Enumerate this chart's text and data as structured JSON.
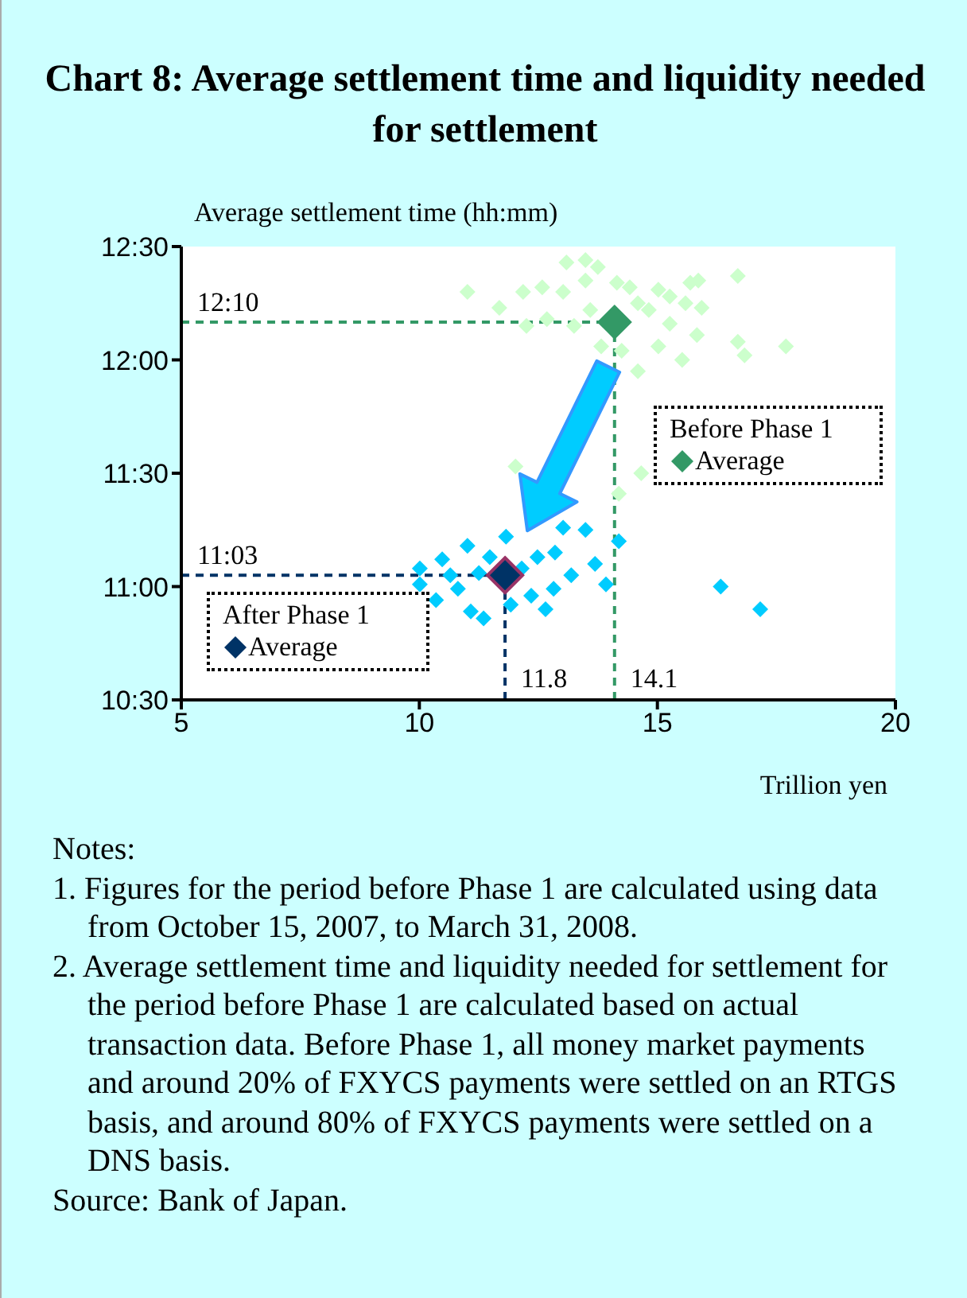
{
  "chart_data": {
    "type": "scatter",
    "title": "Chart 8: Average settlement time and liquidity needed for settlement",
    "xlabel": "Trillion yen",
    "ylabel": "Average settlement time (hh:mm)",
    "marker": "diamond",
    "legend": "right",
    "xlim": [
      5,
      20
    ],
    "xticks": [
      5,
      10,
      15,
      20
    ],
    "ylim": [
      10.5,
      12.5
    ],
    "yticks": [
      {
        "value": 10.5,
        "label": "10:30"
      },
      {
        "value": 11,
        "label": "11:00"
      },
      {
        "value": 11.5,
        "label": "11:30"
      },
      {
        "value": 12,
        "label": "12:00"
      },
      {
        "value": 12.5,
        "label": "12:30"
      }
    ],
    "series": [
      {
        "color": "#ccffcc",
        "x": [
          11.01,
          13.09,
          13.49,
          13.75,
          11.68,
          12.18,
          12.58,
          12.25,
          12.68,
          13.02,
          13.49,
          14.15,
          14.42,
          15.02,
          15.69,
          15.86,
          16.69,
          15.59,
          15.93,
          15.26,
          15.83,
          16.69,
          16.83,
          17.7,
          13.82,
          14.25,
          14.59,
          15.52,
          15.02,
          13.25,
          13.59,
          14.82,
          15.26,
          14.59,
          12.02,
          14.66,
          14.19
        ],
        "values": [
          12.3,
          12.43,
          12.44,
          12.41,
          12.23,
          12.3,
          12.32,
          12.15,
          12.18,
          12.3,
          12.35,
          12.34,
          12.32,
          12.31,
          12.34,
          12.35,
          12.37,
          12.25,
          12.23,
          12.16,
          12.11,
          12.08,
          12.02,
          12.06,
          12.06,
          12.04,
          11.95,
          12.0,
          12.06,
          12.15,
          12.22,
          12.22,
          12.28,
          12.25,
          11.53,
          11.5,
          11.41
        ]
      },
      {
        "color": "#00ccff",
        "x": [
          13.02,
          13.49,
          14.19,
          13.69,
          13.92,
          13.19,
          12.85,
          12.48,
          11.82,
          11.01,
          10.48,
          10.01,
          10.01,
          10.35,
          11.08,
          11.35,
          11.92,
          12.65,
          12.35,
          10.81,
          11.25,
          11.48,
          12.15,
          12.82,
          10.65,
          16.33,
          17.16
        ],
        "values": [
          11.26,
          11.25,
          11.2,
          11.1,
          11.01,
          11.05,
          11.15,
          11.13,
          11.22,
          11.18,
          11.12,
          11.08,
          11.01,
          10.94,
          10.89,
          10.86,
          10.92,
          10.9,
          10.96,
          10.99,
          11.06,
          11.13,
          11.08,
          10.99,
          11.05,
          11.0,
          10.9
        ]
      },
      {
        "name": "Average",
        "color": "#339966",
        "x": [
          14.1
        ],
        "values": [
          12.167
        ]
      },
      {
        "name": "Average",
        "color": "#003366",
        "x": [
          11.8
        ],
        "values": [
          11.05
        ]
      }
    ],
    "ref_lines": [
      {
        "axis": "y",
        "value": 12.167,
        "label": "12:10",
        "color": "#339966",
        "line_style": "dashed"
      },
      {
        "axis": "y",
        "value": 11.05,
        "label": "11:03",
        "color": "#003366",
        "line_style": "dashed"
      },
      {
        "axis": "x",
        "value": 14.1,
        "label": "14.1",
        "color": "#339966",
        "line_style": "dashed"
      },
      {
        "axis": "x",
        "value": 11.8,
        "label": "11.8",
        "color": "#003366",
        "line_style": "dashed"
      }
    ],
    "annotations": [
      "Before Phase 1",
      "After Phase 1",
      "Notes:",
      "1. Figures for the period before Phase 1 are calculated using data from October 15, 2007, to March 31, 2008.",
      "2. Average settlement time and liquidity needed for settlement for the period before Phase 1 are calculated based on actual transaction data. Before Phase 1, all money market payments and around 20% of FXYCS payments were settled on an RTGS basis, and around 80% of FXYCS payments were settled on a DNS basis.",
      "Source: Bank of Japan."
    ]
  }
}
